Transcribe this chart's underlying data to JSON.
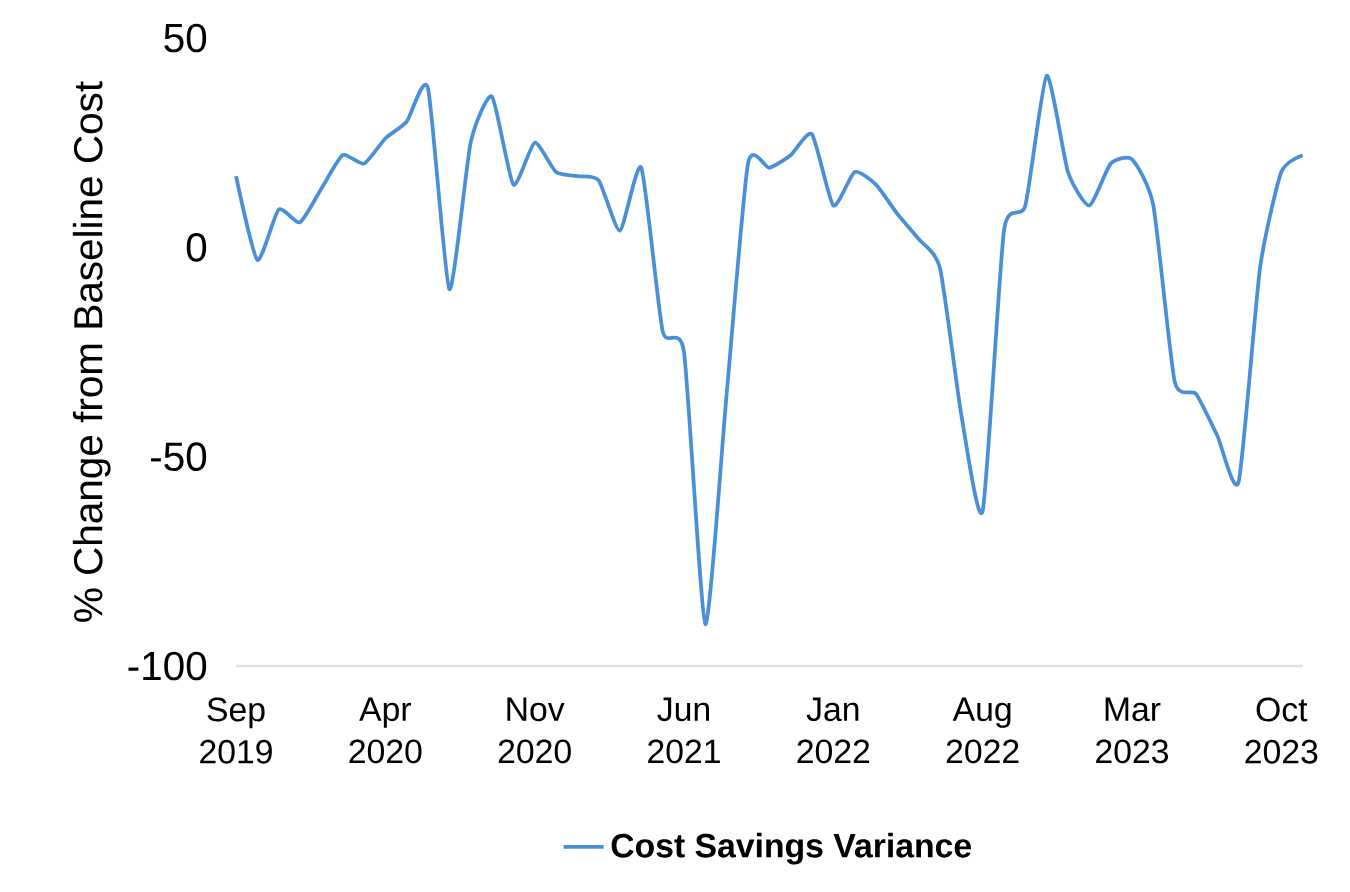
{
  "chart_data": {
    "type": "line",
    "ylabel": "% Change from Baseline Cost",
    "legend": "bottom",
    "marker": "none",
    "line_style": "solid",
    "grid": false,
    "x": [
      "2019-09",
      "2019-10",
      "2019-11",
      "2019-12",
      "2020-01",
      "2020-02",
      "2020-03",
      "2020-04",
      "2020-05",
      "2020-06",
      "2020-07",
      "2020-08",
      "2020-09",
      "2020-10",
      "2020-11",
      "2020-12",
      "2021-01",
      "2021-02",
      "2021-03",
      "2021-04",
      "2021-05",
      "2021-06",
      "2021-07",
      "2021-08",
      "2021-09",
      "2021-10",
      "2021-11",
      "2021-12",
      "2022-01",
      "2022-02",
      "2022-03",
      "2022-04",
      "2022-05",
      "2022-06",
      "2022-07",
      "2022-08",
      "2022-09",
      "2022-10",
      "2022-11",
      "2022-12",
      "2023-01",
      "2023-02",
      "2023-03",
      "2023-04",
      "2023-05",
      "2023-06",
      "2023-07",
      "2023-08",
      "2023-09",
      "2023-10",
      "2023-11"
    ],
    "series": [
      {
        "name": "Cost Savings Variance",
        "color": "#4a90d9",
        "values": [
          17,
          -3,
          9,
          6,
          14,
          22,
          20,
          26,
          30,
          38,
          -10,
          25,
          36,
          15,
          25,
          18,
          17,
          16,
          4,
          19,
          -20,
          -25,
          -90,
          -35,
          20,
          19,
          22,
          27,
          10,
          18,
          15,
          8,
          2,
          -5,
          -40,
          -63,
          4,
          10,
          41,
          18,
          10,
          20,
          21,
          10,
          -32,
          -35,
          -45,
          -56,
          -5,
          18,
          22
        ]
      }
    ],
    "xlim": [
      "2019-09",
      "2023-11"
    ],
    "xticks": [
      {
        "value": "2019-09",
        "label": "Sep 2019"
      },
      {
        "value": "2020-04",
        "label": "Apr 2020"
      },
      {
        "value": "2020-11",
        "label": "Nov 2020"
      },
      {
        "value": "2021-06",
        "label": "Jun 2021"
      },
      {
        "value": "2022-01",
        "label": "Jan 2022"
      },
      {
        "value": "2022-08",
        "label": "Aug 2022"
      },
      {
        "value": "2023-03",
        "label": "Mar 2023"
      },
      {
        "value": "2023-10",
        "label": "Oct 2023"
      }
    ],
    "ylim": [
      -100,
      50
    ],
    "yticks": [
      -100,
      -50,
      0,
      50
    ]
  }
}
